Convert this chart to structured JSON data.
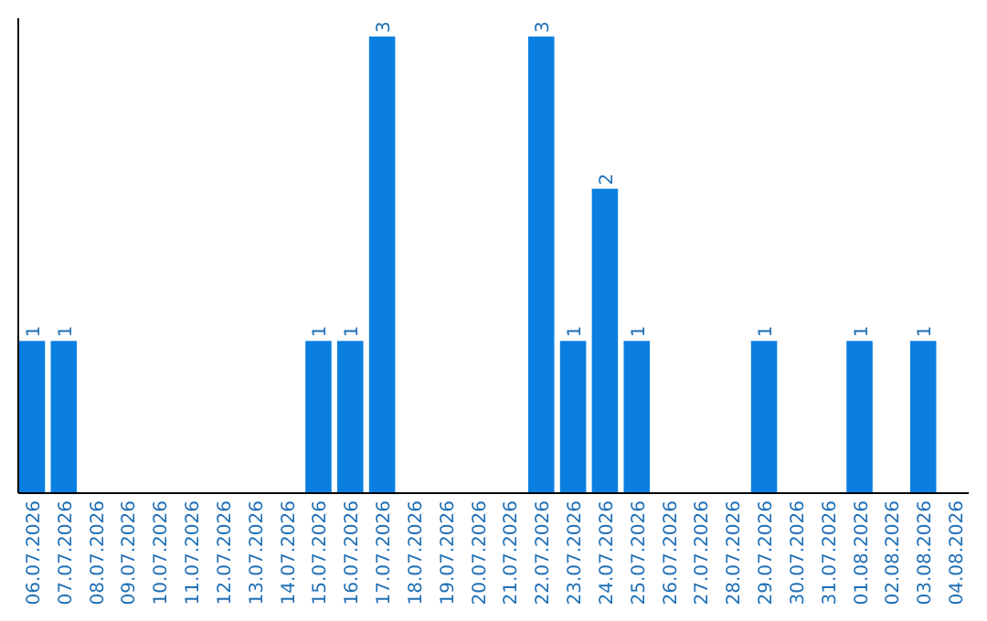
{
  "chart_data": {
    "type": "bar",
    "categories": [
      "06.07.2026",
      "07.07.2026",
      "08.07.2026",
      "09.07.2026",
      "10.07.2026",
      "11.07.2026",
      "12.07.2026",
      "13.07.2026",
      "14.07.2026",
      "15.07.2026",
      "16.07.2026",
      "17.07.2026",
      "18.07.2026",
      "19.07.2026",
      "20.07.2026",
      "21.07.2026",
      "22.07.2026",
      "23.07.2026",
      "24.07.2026",
      "25.07.2026",
      "26.07.2026",
      "27.07.2026",
      "28.07.2026",
      "29.07.2026",
      "30.07.2026",
      "31.07.2026",
      "01.08.2026",
      "02.08.2026",
      "03.08.2026",
      "04.08.2026"
    ],
    "values": [
      1,
      1,
      0,
      0,
      0,
      0,
      0,
      0,
      0,
      1,
      1,
      3,
      0,
      0,
      0,
      0,
      3,
      1,
      2,
      1,
      0,
      0,
      0,
      1,
      0,
      0,
      1,
      0,
      1,
      0
    ],
    "value_labels": [
      "1",
      "1",
      null,
      null,
      null,
      null,
      null,
      null,
      null,
      "1",
      "1",
      "3",
      null,
      null,
      null,
      null,
      "3",
      "1",
      "2",
      "1",
      null,
      null,
      null,
      "1",
      null,
      null,
      "1",
      null,
      "1",
      null
    ],
    "color": "#0a7fe0",
    "relative": false
  }
}
